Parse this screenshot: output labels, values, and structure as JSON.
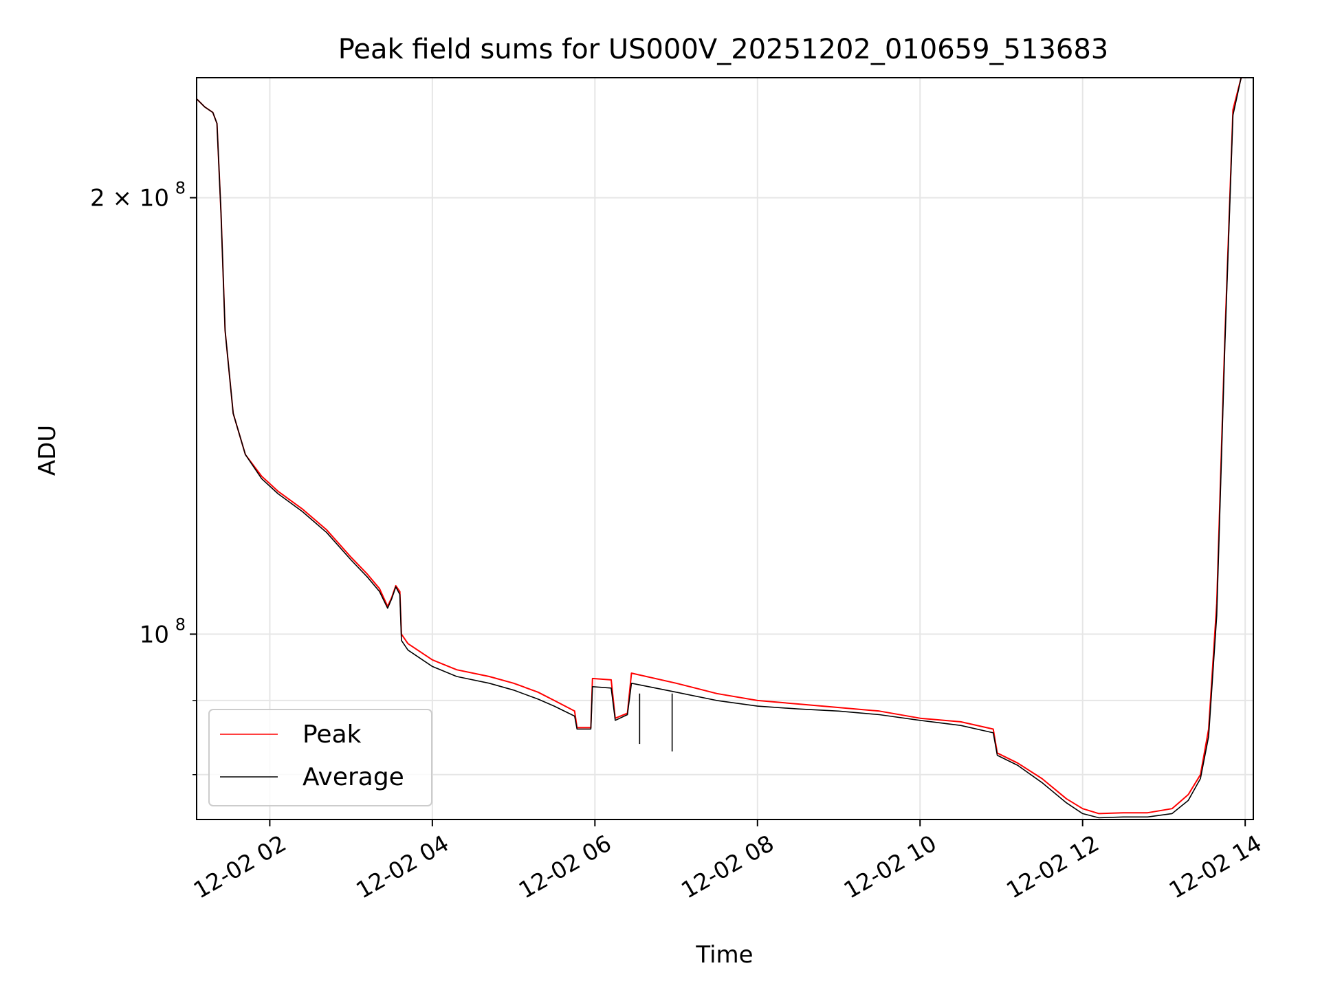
{
  "chart_data": {
    "type": "line",
    "title": "Peak field sums for US000V_20251202_010659_513683",
    "xlabel": "Time",
    "ylabel": "ADU",
    "y_scale": "log",
    "xlim": [
      1.1,
      14.1
    ],
    "ylim": [
      74500000.0,
      242000000.0
    ],
    "x_unit": "hours since 2025-12-02 00:00",
    "grid": true,
    "legend_position": "lower-left",
    "x_ticks": [
      {
        "value": 2,
        "label": "12-02 02"
      },
      {
        "value": 4,
        "label": "12-02 04"
      },
      {
        "value": 6,
        "label": "12-02 06"
      },
      {
        "value": 8,
        "label": "12-02 08"
      },
      {
        "value": 10,
        "label": "12-02 10"
      },
      {
        "value": 12,
        "label": "12-02 12"
      },
      {
        "value": 14,
        "label": "12-02 14"
      }
    ],
    "y_major_ticks": [
      {
        "value": 100000000,
        "label_base": "10",
        "label_exp": "8"
      },
      {
        "value": 200000000,
        "label_base": "2 × 10",
        "label_exp": "8"
      }
    ],
    "y_minor_ticks": [
      80000000,
      90000000
    ],
    "series": [
      {
        "name": "Peak",
        "color": "#ff0000",
        "points": [
          [
            1.1,
            234000000.0
          ],
          [
            1.2,
            231000000.0
          ],
          [
            1.3,
            229000000.0
          ],
          [
            1.35,
            225000000.0
          ],
          [
            1.4,
            195000000.0
          ],
          [
            1.45,
            162000000.0
          ],
          [
            1.55,
            142000000.0
          ],
          [
            1.7,
            133000000.0
          ],
          [
            1.9,
            128500000.0
          ],
          [
            2.1,
            125500000.0
          ],
          [
            2.4,
            122000000.0
          ],
          [
            2.7,
            118000000.0
          ],
          [
            3.0,
            113000000.0
          ],
          [
            3.2,
            110000000.0
          ],
          [
            3.35,
            107500000.0
          ],
          [
            3.45,
            104500000.0
          ],
          [
            3.5,
            106000000.0
          ],
          [
            3.55,
            108000000.0
          ],
          [
            3.6,
            107000000.0
          ],
          [
            3.62,
            100000000.0
          ],
          [
            3.7,
            98500000.0
          ],
          [
            4.0,
            96000000.0
          ],
          [
            4.3,
            94500000.0
          ],
          [
            4.7,
            93500000.0
          ],
          [
            5.0,
            92500000.0
          ],
          [
            5.3,
            91200000.0
          ],
          [
            5.5,
            90000000.0
          ],
          [
            5.75,
            88500000.0
          ],
          [
            5.78,
            86200000.0
          ],
          [
            5.95,
            86200000.0
          ],
          [
            5.97,
            93200000.0
          ],
          [
            6.2,
            93000000.0
          ],
          [
            6.25,
            87500000.0
          ],
          [
            6.4,
            88200000.0
          ],
          [
            6.45,
            94000000.0
          ],
          [
            7.0,
            92500000.0
          ],
          [
            7.5,
            91000000.0
          ],
          [
            8.0,
            90000000.0
          ],
          [
            8.5,
            89500000.0
          ],
          [
            9.0,
            89000000.0
          ],
          [
            9.5,
            88500000.0
          ],
          [
            10.0,
            87500000.0
          ],
          [
            10.5,
            87000000.0
          ],
          [
            10.9,
            86000000.0
          ],
          [
            10.95,
            82800000.0
          ],
          [
            11.2,
            81500000.0
          ],
          [
            11.5,
            79500000.0
          ],
          [
            11.8,
            77000000.0
          ],
          [
            12.0,
            75800000.0
          ],
          [
            12.2,
            75200000.0
          ],
          [
            12.5,
            75300000.0
          ],
          [
            12.8,
            75300000.0
          ],
          [
            13.1,
            75800000.0
          ],
          [
            13.3,
            77500000.0
          ],
          [
            13.45,
            80000000.0
          ],
          [
            13.55,
            86000000.0
          ],
          [
            13.65,
            105000000.0
          ],
          [
            13.75,
            160000000.0
          ],
          [
            13.85,
            230000000.0
          ],
          [
            13.95,
            242000000.0
          ]
        ]
      },
      {
        "name": "Average",
        "color": "#000000",
        "points": [
          [
            1.1,
            234000000.0
          ],
          [
            1.2,
            231000000.0
          ],
          [
            1.3,
            229000000.0
          ],
          [
            1.35,
            225000000.0
          ],
          [
            1.4,
            195000000.0
          ],
          [
            1.45,
            162000000.0
          ],
          [
            1.55,
            142000000.0
          ],
          [
            1.7,
            133000000.0
          ],
          [
            1.9,
            128000000.0
          ],
          [
            2.1,
            125000000.0
          ],
          [
            2.4,
            121500000.0
          ],
          [
            2.7,
            117500000.0
          ],
          [
            3.0,
            112500000.0
          ],
          [
            3.2,
            109500000.0
          ],
          [
            3.35,
            107000000.0
          ],
          [
            3.45,
            104200000.0
          ],
          [
            3.5,
            105800000.0
          ],
          [
            3.55,
            107800000.0
          ],
          [
            3.6,
            106500000.0
          ],
          [
            3.62,
            99000000.0
          ],
          [
            3.7,
            97500000.0
          ],
          [
            4.0,
            95000000.0
          ],
          [
            4.3,
            93500000.0
          ],
          [
            4.7,
            92500000.0
          ],
          [
            5.0,
            91500000.0
          ],
          [
            5.3,
            90200000.0
          ],
          [
            5.5,
            89200000.0
          ],
          [
            5.75,
            87800000.0
          ],
          [
            5.78,
            86000000.0
          ],
          [
            5.95,
            86000000.0
          ],
          [
            5.97,
            92000000.0
          ],
          [
            6.2,
            91800000.0
          ],
          [
            6.25,
            87200000.0
          ],
          [
            6.4,
            88000000.0
          ],
          [
            6.45,
            92500000.0
          ],
          [
            7.0,
            91200000.0
          ],
          [
            7.5,
            90000000.0
          ],
          [
            8.0,
            89200000.0
          ],
          [
            8.5,
            88800000.0
          ],
          [
            9.0,
            88500000.0
          ],
          [
            9.5,
            88000000.0
          ],
          [
            10.0,
            87200000.0
          ],
          [
            10.5,
            86500000.0
          ],
          [
            10.9,
            85500000.0
          ],
          [
            10.95,
            82500000.0
          ],
          [
            11.2,
            81200000.0
          ],
          [
            11.5,
            79000000.0
          ],
          [
            11.8,
            76500000.0
          ],
          [
            12.0,
            75200000.0
          ],
          [
            12.2,
            74700000.0
          ],
          [
            12.5,
            74800000.0
          ],
          [
            12.8,
            74800000.0
          ],
          [
            13.1,
            75200000.0
          ],
          [
            13.3,
            76800000.0
          ],
          [
            13.45,
            79500000.0
          ],
          [
            13.55,
            85000000.0
          ],
          [
            13.65,
            103000000.0
          ],
          [
            13.75,
            158000000.0
          ],
          [
            13.85,
            228000000.0
          ],
          [
            13.95,
            242000000.0
          ]
        ]
      }
    ],
    "annotations": [
      {
        "note": "downward dips in Average",
        "x": 6.55,
        "y": 84000000.0
      },
      {
        "note": "downward dips in Average",
        "x": 6.95,
        "y": 83000000.0
      }
    ]
  }
}
